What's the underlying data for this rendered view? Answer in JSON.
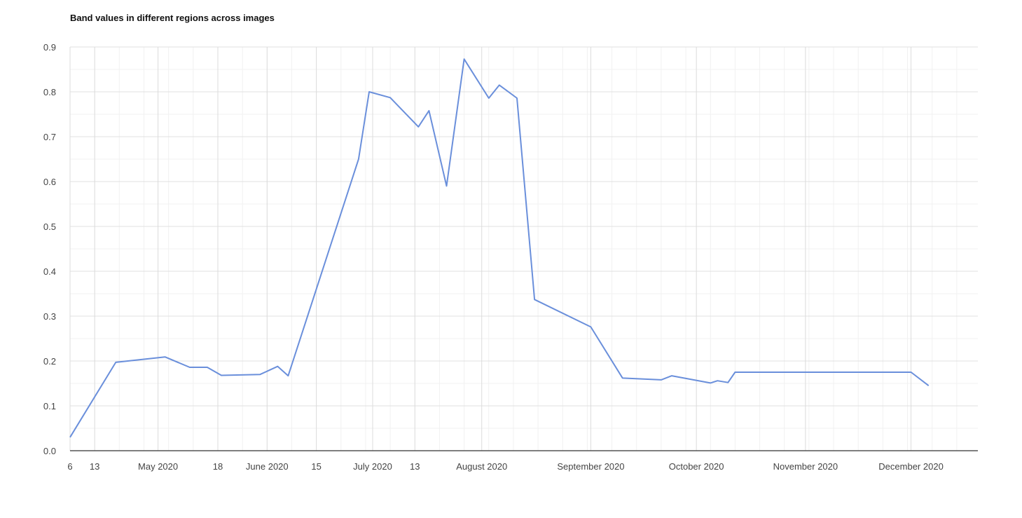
{
  "chart_data": {
    "type": "line",
    "title": "Band values in different regions across images",
    "xlabel": "",
    "ylabel": "",
    "xlim": [
      "2020-04-06",
      "2020-12-20"
    ],
    "ylim": [
      0,
      0.9
    ],
    "grid": true,
    "legend": "none",
    "y_ticks": [
      "0.0",
      "0.1",
      "0.2",
      "0.3",
      "0.4",
      "0.5",
      "0.6",
      "0.7",
      "0.8",
      "0.9"
    ],
    "x_ticks": [
      {
        "date": "2020-04-06",
        "label": "6"
      },
      {
        "date": "2020-04-13",
        "label": "13"
      },
      {
        "date": "2020-05-01",
        "label": "May 2020"
      },
      {
        "date": "2020-05-18",
        "label": "18"
      },
      {
        "date": "2020-06-01",
        "label": "June 2020"
      },
      {
        "date": "2020-06-15",
        "label": "15"
      },
      {
        "date": "2020-07-01",
        "label": "July 2020"
      },
      {
        "date": "2020-07-13",
        "label": "13"
      },
      {
        "date": "2020-08-01",
        "label": "August 2020"
      },
      {
        "date": "2020-09-01",
        "label": "September 2020"
      },
      {
        "date": "2020-10-01",
        "label": "October 2020"
      },
      {
        "date": "2020-11-01",
        "label": "November 2020"
      },
      {
        "date": "2020-12-01",
        "label": "December 2020"
      }
    ],
    "series": [
      {
        "color": "#6a8fdb",
        "points": [
          [
            "2020-04-06",
            0.03
          ],
          [
            "2020-04-19",
            0.197
          ],
          [
            "2020-05-03",
            0.209
          ],
          [
            "2020-05-10",
            0.186
          ],
          [
            "2020-05-15",
            0.186
          ],
          [
            "2020-05-19",
            0.168
          ],
          [
            "2020-05-30",
            0.17
          ],
          [
            "2020-06-04",
            0.188
          ],
          [
            "2020-06-07",
            0.167
          ],
          [
            "2020-06-27",
            0.65
          ],
          [
            "2020-06-30",
            0.8
          ],
          [
            "2020-07-06",
            0.787
          ],
          [
            "2020-07-14",
            0.722
          ],
          [
            "2020-07-17",
            0.758
          ],
          [
            "2020-07-22",
            0.59
          ],
          [
            "2020-07-27",
            0.873
          ],
          [
            "2020-08-03",
            0.786
          ],
          [
            "2020-08-06",
            0.815
          ],
          [
            "2020-08-11",
            0.786
          ],
          [
            "2020-08-16",
            0.337
          ],
          [
            "2020-09-01",
            0.276
          ],
          [
            "2020-09-10",
            0.162
          ],
          [
            "2020-09-21",
            0.158
          ],
          [
            "2020-09-24",
            0.167
          ],
          [
            "2020-10-05",
            0.151
          ],
          [
            "2020-10-07",
            0.156
          ],
          [
            "2020-10-10",
            0.152
          ],
          [
            "2020-10-12",
            0.175
          ],
          [
            "2020-12-01",
            0.175
          ],
          [
            "2020-12-06",
            0.145
          ]
        ]
      }
    ]
  }
}
